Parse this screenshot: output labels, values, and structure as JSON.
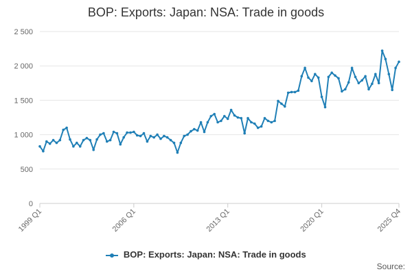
{
  "header": {
    "title": "BOP: Exports: Japan: NSA: Trade in goods"
  },
  "footer": {
    "source_label": "Source:"
  },
  "colors": {
    "series": "#1f7fb6",
    "grid": "#e6e6e6",
    "axis": "#cccccc"
  },
  "chart_data": {
    "type": "line",
    "title": "BOP: Exports: Japan: NSA: Trade in goods",
    "xlabel": "",
    "ylabel": "",
    "ylim": [
      0,
      2500
    ],
    "yticks": [
      0,
      500,
      1000,
      1500,
      2000,
      2500
    ],
    "ytick_labels": [
      "0",
      "500",
      "1 000",
      "1 500",
      "2 000",
      "2 500"
    ],
    "xtick_labels": [
      {
        "label": "1999 Q1",
        "index": 0
      },
      {
        "label": "2006 Q1",
        "index": 28
      },
      {
        "label": "2013 Q1",
        "index": 56
      },
      {
        "label": "2020 Q1",
        "index": 84
      },
      {
        "label": "2025 Q4",
        "index": 107
      }
    ],
    "grid": true,
    "legend_position": "bottom",
    "series": [
      {
        "name": "BOP: Exports: Japan: NSA: Trade in goods",
        "x_start": "1999 Q1",
        "x_end": "2025 Q4",
        "values": [
          830,
          760,
          900,
          870,
          920,
          880,
          920,
          1070,
          1100,
          930,
          830,
          880,
          830,
          920,
          950,
          920,
          780,
          930,
          1000,
          1020,
          900,
          920,
          1040,
          1020,
          860,
          960,
          1030,
          1030,
          1040,
          990,
          980,
          1020,
          900,
          980,
          960,
          1000,
          940,
          980,
          960,
          920,
          880,
          740,
          880,
          980,
          1000,
          1050,
          1080,
          1060,
          1180,
          1040,
          1180,
          1270,
          1300,
          1180,
          1200,
          1270,
          1230,
          1360,
          1280,
          1250,
          1240,
          1020,
          1240,
          1180,
          1160,
          1100,
          1120,
          1240,
          1200,
          1180,
          1200,
          1490,
          1450,
          1410,
          1610,
          1620,
          1620,
          1640,
          1850,
          1970,
          1830,
          1780,
          1880,
          1830,
          1550,
          1400,
          1840,
          1900,
          1860,
          1820,
          1630,
          1660,
          1760,
          1970,
          1840,
          1750,
          1790,
          1850,
          1660,
          1740,
          1880,
          1750,
          2220,
          2100,
          1880,
          1650,
          1970,
          2060
        ]
      }
    ]
  }
}
